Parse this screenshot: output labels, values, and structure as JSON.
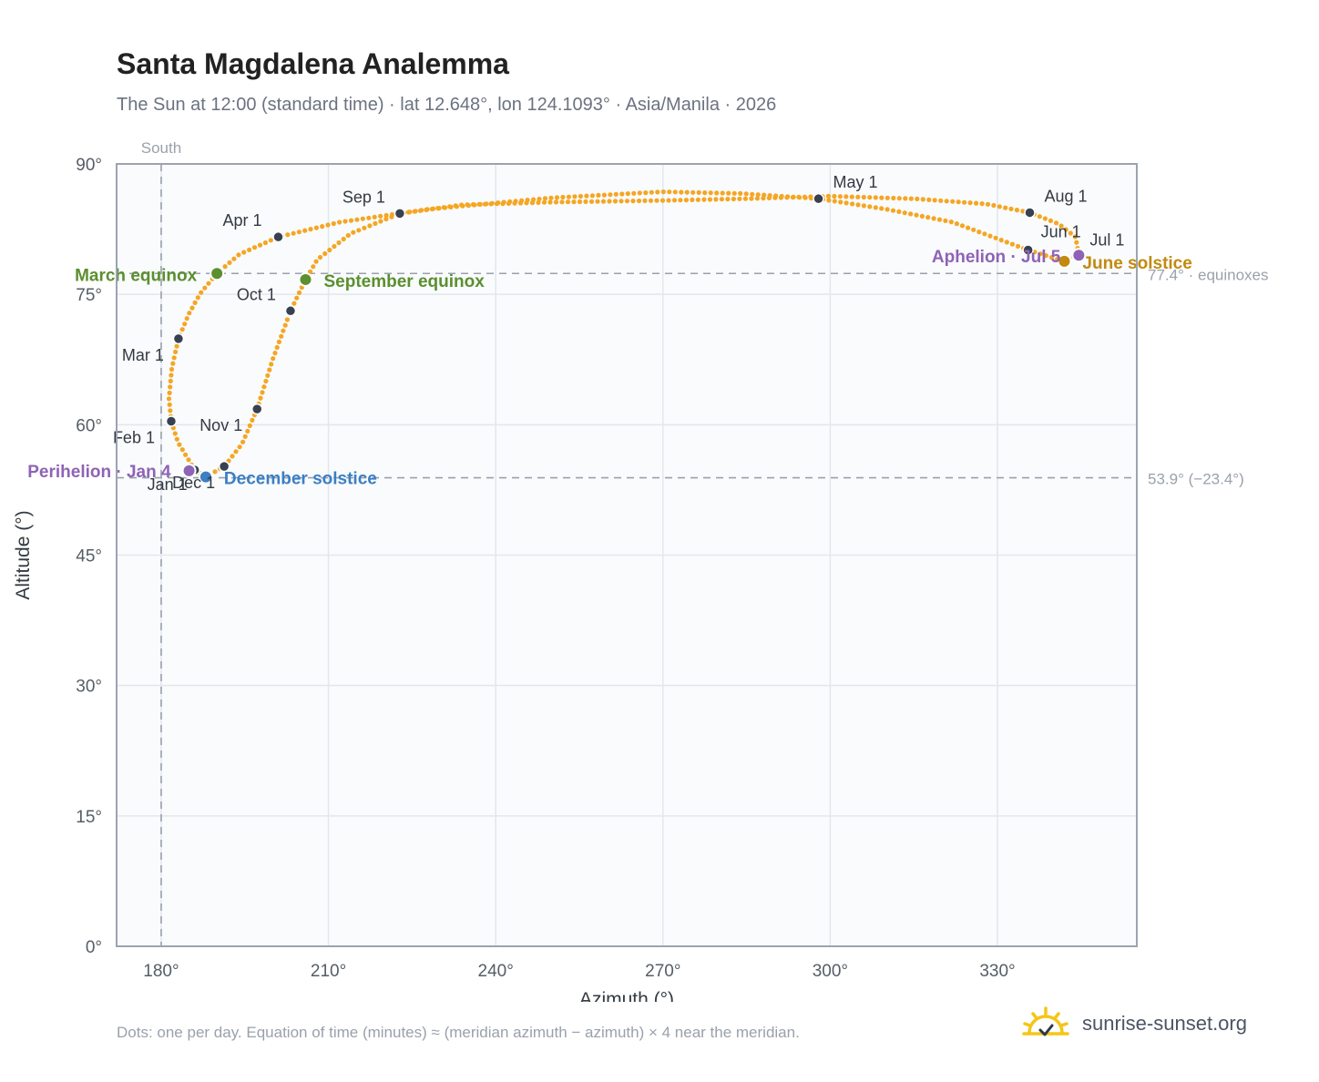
{
  "title": "Santa Magdalena Analemma",
  "subtitle": "The Sun at 12:00 (standard time) · lat 12.648°, lon 124.1093° · Asia/Manila · 2026",
  "footnote": "Dots: one per day. Equation of time (minutes) ≈ (meridian azimuth − azimuth) × 4 near the meridian.",
  "brand": {
    "name": "sunrise-sunset.org",
    "icon": "sun-logo-icon"
  },
  "colors": {
    "curve": "#f5a623",
    "month_marker": "#374151",
    "equinox": "#5b8f2f",
    "december_solstice": "#3b7fc4",
    "june_solstice": "#c28a0e",
    "perihelion_aphelion": "#8e63b5",
    "reference_line": "#9aa1ab",
    "plot_background": "#f9fbfd",
    "grid": "#e3e7ec"
  },
  "chart_data": {
    "type": "scatter",
    "xlabel": "Azimuth (°)",
    "ylabel": "Altitude (°)",
    "xlim": [
      172,
      355
    ],
    "ylim": [
      0,
      90
    ],
    "x_ticks": [
      {
        "value": 180,
        "label": "180°"
      },
      {
        "value": 210,
        "label": "210°"
      },
      {
        "value": 240,
        "label": "240°"
      },
      {
        "value": 270,
        "label": "270°"
      },
      {
        "value": 300,
        "label": "300°"
      },
      {
        "value": 330,
        "label": "330°"
      }
    ],
    "y_ticks": [
      {
        "value": 0,
        "label": "0°"
      },
      {
        "value": 15,
        "label": "15°"
      },
      {
        "value": 30,
        "label": "30°"
      },
      {
        "value": 45,
        "label": "45°"
      },
      {
        "value": 60,
        "label": "60°"
      },
      {
        "value": 75,
        "label": "75°"
      },
      {
        "value": 90,
        "label": "90°"
      }
    ],
    "grid": true,
    "vertical_reference": {
      "x": 180,
      "label": "South"
    },
    "horizontal_references": [
      {
        "y": 77.4,
        "label": "77.4° · equinoxes"
      },
      {
        "y": 53.9,
        "label": "53.9° (−23.4°)"
      }
    ],
    "daily_path": [
      [
        186.0,
        54.8
      ],
      [
        183.0,
        58.0
      ],
      [
        181.8,
        60.4
      ],
      [
        181.4,
        63.0
      ],
      [
        181.9,
        66.5
      ],
      [
        183.1,
        69.9
      ],
      [
        185.0,
        72.8
      ],
      [
        187.0,
        75.1
      ],
      [
        190.0,
        77.4
      ],
      [
        194.0,
        79.6
      ],
      [
        201.0,
        81.6
      ],
      [
        212.0,
        83.3
      ],
      [
        228.0,
        84.8
      ],
      [
        250.0,
        86.1
      ],
      [
        270.0,
        86.8
      ],
      [
        284.0,
        86.6
      ],
      [
        297.9,
        86.0
      ],
      [
        310.0,
        84.8
      ],
      [
        322.0,
        83.3
      ],
      [
        335.5,
        80.1
      ],
      [
        342.0,
        78.8
      ],
      [
        344.6,
        79.6
      ],
      [
        344.0,
        81.6
      ],
      [
        341.0,
        83.1
      ],
      [
        335.8,
        84.4
      ],
      [
        328.0,
        85.4
      ],
      [
        315.0,
        86.0
      ],
      [
        300.0,
        86.3
      ],
      [
        285.0,
        86.0
      ],
      [
        270.0,
        85.8
      ],
      [
        250.0,
        85.6
      ],
      [
        234.0,
        85.3
      ],
      [
        222.8,
        84.3
      ],
      [
        214.0,
        82.0
      ],
      [
        208.0,
        79.0
      ],
      [
        205.9,
        76.7
      ],
      [
        203.2,
        73.1
      ],
      [
        200.0,
        67.5
      ],
      [
        197.2,
        61.8
      ],
      [
        194.5,
        57.8
      ],
      [
        191.3,
        55.2
      ],
      [
        188.0,
        54.0
      ],
      [
        186.0,
        54.8
      ]
    ],
    "month_markers": [
      {
        "label": "Jan 1",
        "x": 186.0,
        "y": 54.8
      },
      {
        "label": "Feb 1",
        "x": 181.8,
        "y": 60.4
      },
      {
        "label": "Mar 1",
        "x": 183.1,
        "y": 69.9
      },
      {
        "label": "Apr 1",
        "x": 201.0,
        "y": 81.6
      },
      {
        "label": "May 1",
        "x": 297.9,
        "y": 86.0
      },
      {
        "label": "Jun 1",
        "x": 335.5,
        "y": 80.1
      },
      {
        "label": "Jul 1",
        "x": 344.6,
        "y": 79.6
      },
      {
        "label": "Aug 1",
        "x": 335.8,
        "y": 84.4
      },
      {
        "label": "Sep 1",
        "x": 222.8,
        "y": 84.3
      },
      {
        "label": "Oct 1",
        "x": 203.2,
        "y": 73.1
      },
      {
        "label": "Nov 1",
        "x": 197.2,
        "y": 61.8
      },
      {
        "label": "Dec 1",
        "x": 191.3,
        "y": 55.2
      }
    ],
    "events": [
      {
        "label": "March equinox",
        "x": 190.0,
        "y": 77.4,
        "kind": "equinox"
      },
      {
        "label": "September equinox",
        "x": 205.9,
        "y": 76.7,
        "kind": "equinox"
      },
      {
        "label": "December solstice",
        "x": 188.0,
        "y": 54.0,
        "kind": "december_solstice"
      },
      {
        "label": "June solstice",
        "x": 342.0,
        "y": 78.8,
        "kind": "june_solstice"
      },
      {
        "label": "Perihelion · Jan 4",
        "x": 185.0,
        "y": 54.7,
        "kind": "perihelion_aphelion"
      },
      {
        "label": "Aphelion · Jul 5",
        "x": 344.6,
        "y": 79.5,
        "kind": "perihelion_aphelion"
      }
    ]
  }
}
